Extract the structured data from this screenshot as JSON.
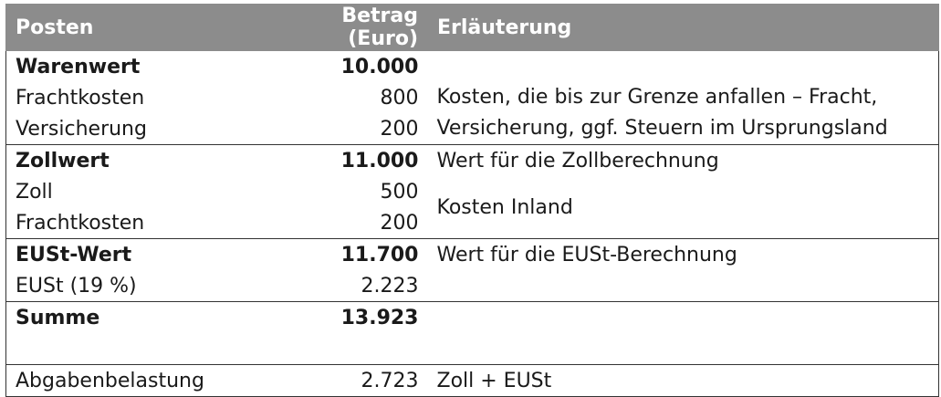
{
  "header": {
    "posten": "Posten",
    "betrag": "Betrag (Euro)",
    "erlaeuterung": "Erläuterung"
  },
  "rows": [
    {
      "label": "Warenwert",
      "value": "10.000",
      "note": ""
    },
    {
      "label": "Frachtkosten",
      "value": "800",
      "note": "Kosten, die bis zur Grenze anfallen – Fracht,"
    },
    {
      "label": "Versicherung",
      "value": "200",
      "note": "Versicherung, ggf. Steuern im Ursprungsland"
    },
    {
      "label": "Zollwert",
      "value": "11.000",
      "note": "Wert für die Zollberechnung"
    },
    {
      "label": "Zoll",
      "value": "500",
      "note": "Kosten Inland"
    },
    {
      "label": "Frachtkosten",
      "value": "200",
      "note": ""
    },
    {
      "label": "EUSt-Wert",
      "value": "11.700",
      "note": "Wert für die EUSt-Berechnung"
    },
    {
      "label": "EUSt (19 %)",
      "value": "2.223",
      "note": ""
    },
    {
      "label": "Summe",
      "value": "13.923",
      "note": ""
    },
    {
      "label": "Abgabenbelastung",
      "value": "2.723",
      "note": "Zoll + EUSt"
    }
  ]
}
